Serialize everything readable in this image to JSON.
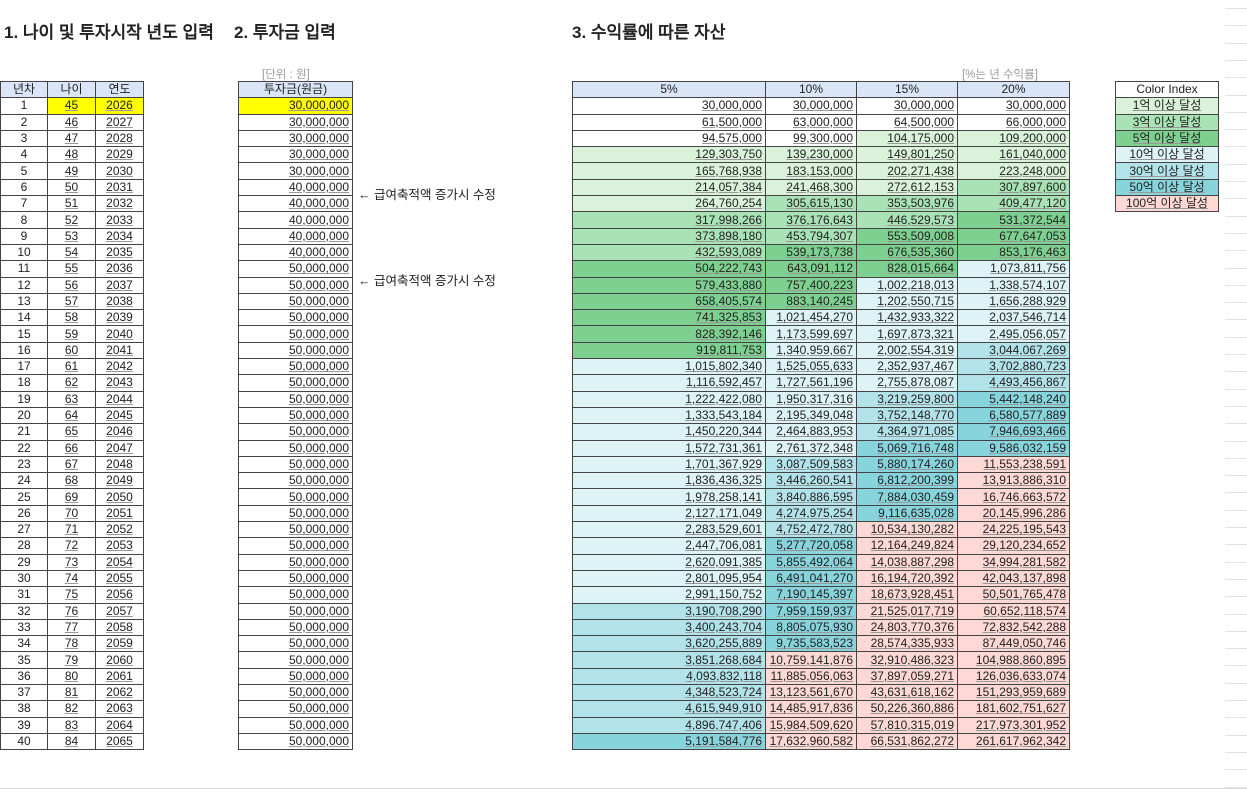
{
  "titles": {
    "section1": "1. 나이 및 투자시작 년도 입력",
    "section2": "2. 투자금 입력",
    "section3": "3. 수익률에 따른 자산"
  },
  "units": {
    "principal_unit": "[단위 : 원]",
    "rate_unit": "[%는 년 수익률]"
  },
  "left_table": {
    "headers": [
      "년차",
      "나이",
      "연도"
    ],
    "start_age": 45,
    "start_year": 2026
  },
  "principal_table": {
    "header": "투자금(원금)",
    "values": [
      "30,000,000",
      "30,000,000",
      "30,000,000",
      "30,000,000",
      "30,000,000",
      "40,000,000",
      "40,000,000",
      "40,000,000",
      "40,000,000",
      "40,000,000",
      "50,000,000",
      "50,000,000",
      "50,000,000",
      "50,000,000",
      "50,000,000",
      "50,000,000",
      "50,000,000",
      "50,000,000",
      "50,000,000",
      "50,000,000",
      "50,000,000",
      "50,000,000",
      "50,000,000",
      "50,000,000",
      "50,000,000",
      "50,000,000",
      "50,000,000",
      "50,000,000",
      "50,000,000",
      "50,000,000",
      "50,000,000",
      "50,000,000",
      "50,000,000",
      "50,000,000",
      "50,000,000",
      "50,000,000",
      "50,000,000",
      "50,000,000",
      "50,000,000",
      "50,000,000"
    ],
    "notes": [
      {
        "row": 6,
        "text": "← 급여축적액 증가시 수정"
      },
      {
        "row": 11,
        "text": "← 급여축적액 증가시 수정"
      }
    ]
  },
  "asset_table": {
    "headers": [
      "5%",
      "10%",
      "15%",
      "20%"
    ],
    "columns": [
      [
        "30,000,000",
        "61,500,000",
        "94,575,000",
        "129,303,750",
        "165,768,938",
        "214,057,384",
        "264,760,254",
        "317,998,266",
        "373,898,180",
        "432,593,089",
        "504,222,743",
        "579,433,880",
        "658,405,574",
        "741,325,853",
        "828,392,146",
        "919,811,753",
        "1,015,802,340",
        "1,116,592,457",
        "1,222,422,080",
        "1,333,543,184",
        "1,450,220,344",
        "1,572,731,361",
        "1,701,367,929",
        "1,836,436,325",
        "1,978,258,141",
        "2,127,171,049",
        "2,283,529,601",
        "2,447,706,081",
        "2,620,091,385",
        "2,801,095,954",
        "2,991,150,752",
        "3,190,708,290",
        "3,400,243,704",
        "3,620,255,889",
        "3,851,268,684",
        "4,093,832,118",
        "4,348,523,724",
        "4,615,949,910",
        "4,896,747,406",
        "5,191,584,776"
      ],
      [
        "30,000,000",
        "63,000,000",
        "99,300,000",
        "139,230,000",
        "183,153,000",
        "241,468,300",
        "305,615,130",
        "376,176,643",
        "453,794,307",
        "539,173,738",
        "643,091,112",
        "757,400,223",
        "883,140,245",
        "1,021,454,270",
        "1,173,599,697",
        "1,340,959,667",
        "1,525,055,633",
        "1,727,561,196",
        "1,950,317,316",
        "2,195,349,048",
        "2,464,883,953",
        "2,761,372,348",
        "3,087,509,583",
        "3,446,260,541",
        "3,840,886,595",
        "4,274,975,254",
        "4,752,472,780",
        "5,277,720,058",
        "5,855,492,064",
        "6,491,041,270",
        "7,190,145,397",
        "7,959,159,937",
        "8,805,075,930",
        "9,735,583,523",
        "10,759,141,876",
        "11,885,056,063",
        "13,123,561,670",
        "14,485,917,836",
        "15,984,509,620",
        "17,632,960,582"
      ],
      [
        "30,000,000",
        "64,500,000",
        "104,175,000",
        "149,801,250",
        "202,271,438",
        "272,612,153",
        "353,503,976",
        "446,529,573",
        "553,509,008",
        "676,535,360",
        "828,015,664",
        "1,002,218,013",
        "1,202,550,715",
        "1,432,933,322",
        "1,697,873,321",
        "2,002,554,319",
        "2,352,937,467",
        "2,755,878,087",
        "3,219,259,800",
        "3,752,148,770",
        "4,364,971,085",
        "5,069,716,748",
        "5,880,174,260",
        "6,812,200,399",
        "7,884,030,459",
        "9,116,635,028",
        "10,534,130,282",
        "12,164,249,824",
        "14,038,887,298",
        "16,194,720,392",
        "18,673,928,451",
        "21,525,017,719",
        "24,803,770,376",
        "28,574,335,933",
        "32,910,486,323",
        "37,897,059,271",
        "43,631,618,162",
        "50,226,360,886",
        "57,810,315,019",
        "66,531,862,272"
      ],
      [
        "30,000,000",
        "66,000,000",
        "109,200,000",
        "161,040,000",
        "223,248,000",
        "307,897,600",
        "409,477,120",
        "531,372,544",
        "677,647,053",
        "853,176,463",
        "1,073,811,756",
        "1,338,574,107",
        "1,656,288,929",
        "2,037,546,714",
        "2,495,056,057",
        "3,044,067,269",
        "3,702,880,723",
        "4,493,456,867",
        "5,442,148,240",
        "6,580,577,889",
        "7,946,693,466",
        "9,586,032,159",
        "11,553,238,591",
        "13,913,886,310",
        "16,746,663,572",
        "20,145,996,286",
        "24,225,195,543",
        "29,120,234,652",
        "34,994,281,582",
        "42,043,137,898",
        "50,501,765,478",
        "60,652,118,574",
        "72,832,542,288",
        "87,449,050,746",
        "104,988,860,895",
        "126,036,633,074",
        "151,293,959,689",
        "181,602,751,627",
        "217,973,301,952",
        "261,617,962,342"
      ]
    ]
  },
  "color_index": {
    "header": "Color Index",
    "items": [
      {
        "label": "1억 이상 달성",
        "threshold": 100000000,
        "color": "#d9f2d9"
      },
      {
        "label": "3억 이상 달성",
        "threshold": 300000000,
        "color": "#a9e2b4"
      },
      {
        "label": "5억 이상 달성",
        "threshold": 500000000,
        "color": "#7dd08f"
      },
      {
        "label": "10억 이상 달성",
        "threshold": 1000000000,
        "color": "#ddf3f6"
      },
      {
        "label": "30억 이상 달성",
        "threshold": 3000000000,
        "color": "#b3e3ea"
      },
      {
        "label": "50억 이상 달성",
        "threshold": 5000000000,
        "color": "#88d4dd"
      },
      {
        "label": "100억 이상 달성",
        "threshold": 10000000000,
        "color": "#fdd8d4"
      }
    ]
  },
  "colors": {
    "header_bg": "#dae5f8",
    "input_highlight": "#ffff00"
  }
}
